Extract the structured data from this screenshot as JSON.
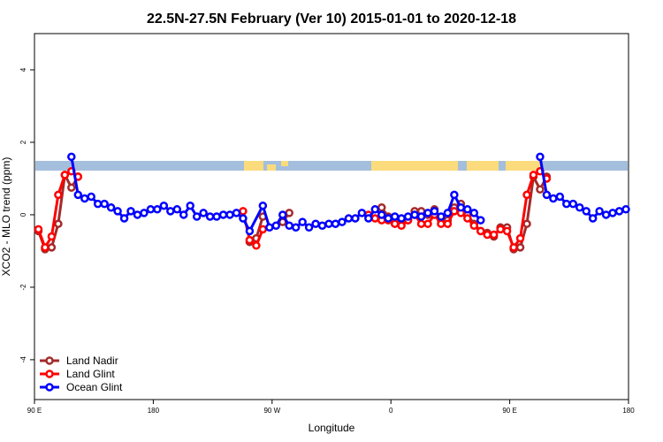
{
  "chart_data": {
    "type": "line",
    "title": "22.5N-27.5N February (Ver 10)   2015-01-01 to 2020-12-18",
    "x_label": "Longitude",
    "y_label": "XCO2 - MLO trend (ppm)",
    "xlim": [
      90,
      540
    ],
    "ylim": [
      -5.1,
      5.0
    ],
    "xticks": [
      {
        "value": 90,
        "label": "90 E"
      },
      {
        "value": 180,
        "label": "180"
      },
      {
        "value": 270,
        "label": "90 W"
      },
      {
        "value": 360,
        "label": "0"
      },
      {
        "value": 450,
        "label": "90 E"
      },
      {
        "value": 540,
        "label": "180"
      }
    ],
    "yticks": [
      -4,
      -2,
      0,
      2,
      4
    ],
    "legend": "bottomleft",
    "series": [
      {
        "name": "Land Nadir",
        "color": "#a52a2a",
        "x": [
          93,
          98,
          103,
          108,
          113,
          118,
          123,
          188,
          253,
          258,
          263,
          270,
          278,
          283,
          300,
          353,
          358,
          363,
          368,
          373,
          378,
          383,
          388,
          393,
          398,
          403,
          408,
          413,
          418,
          423,
          428,
          433,
          438,
          443,
          448,
          453,
          458,
          463,
          468,
          473,
          478
        ],
        "values": [
          -0.45,
          -0.95,
          -0.9,
          -0.25,
          1.1,
          0.75,
          1.05,
          null,
          -0.75,
          -0.65,
          -0.05,
          null,
          -0.2,
          0.05,
          null,
          0.2,
          -0.05,
          -0.1,
          -0.15,
          -0.15,
          0.1,
          0.1,
          0.0,
          0.15,
          -0.15,
          -0.15,
          0.2,
          0.3,
          0.0,
          -0.25,
          -0.45,
          -0.5,
          -0.6,
          -0.35,
          -0.35,
          -0.95,
          -0.9,
          -0.25,
          1.05,
          0.7,
          1.05
        ]
      },
      {
        "name": "Land Glint",
        "color": "#ff0000",
        "x": [
          93,
          98,
          103,
          108,
          113,
          118,
          123,
          188,
          248,
          253,
          258,
          263,
          300,
          343,
          348,
          353,
          358,
          363,
          368,
          373,
          378,
          383,
          388,
          393,
          398,
          403,
          408,
          413,
          418,
          423,
          428,
          433,
          438,
          443,
          448,
          453,
          458,
          463,
          468,
          473,
          478
        ],
        "values": [
          -0.4,
          -0.9,
          -0.6,
          0.55,
          1.1,
          1.2,
          1.05,
          null,
          0.1,
          -0.7,
          -0.85,
          -0.4,
          null,
          0.0,
          -0.1,
          -0.15,
          -0.15,
          -0.25,
          -0.3,
          -0.15,
          0.0,
          -0.25,
          -0.25,
          0.0,
          -0.25,
          -0.25,
          0.1,
          0.05,
          -0.1,
          -0.3,
          -0.45,
          -0.55,
          -0.55,
          -0.4,
          -0.45,
          -0.9,
          -0.65,
          0.55,
          1.1,
          1.2,
          1.0
        ]
      },
      {
        "name": "Ocean Glint",
        "color": "#0000ff",
        "x": [
          118,
          123,
          128,
          133,
          138,
          143,
          148,
          153,
          158,
          163,
          168,
          173,
          178,
          183,
          188,
          193,
          198,
          203,
          208,
          213,
          218,
          223,
          228,
          233,
          238,
          243,
          248,
          253,
          263,
          268,
          273,
          278,
          283,
          288,
          293,
          298,
          303,
          308,
          313,
          318,
          323,
          328,
          333,
          338,
          343,
          348,
          353,
          358,
          363,
          368,
          373,
          378,
          383,
          388,
          393,
          398,
          403,
          408,
          413,
          418,
          423,
          428,
          450,
          473,
          478,
          483,
          488,
          493,
          498,
          503,
          508,
          513,
          518,
          523,
          528,
          533,
          538
        ],
        "values": [
          1.6,
          0.55,
          0.45,
          0.5,
          0.3,
          0.3,
          0.2,
          0.1,
          -0.1,
          0.1,
          0.0,
          0.05,
          0.15,
          0.15,
          0.25,
          0.1,
          0.15,
          0.0,
          0.25,
          -0.05,
          0.05,
          -0.05,
          -0.05,
          0.0,
          0.0,
          0.05,
          -0.1,
          -0.45,
          0.25,
          -0.35,
          -0.3,
          0.0,
          -0.3,
          -0.35,
          -0.2,
          -0.35,
          -0.25,
          -0.3,
          -0.25,
          -0.25,
          -0.2,
          -0.1,
          -0.1,
          0.05,
          -0.1,
          0.15,
          0.0,
          -0.1,
          -0.05,
          -0.1,
          -0.05,
          0.0,
          -0.05,
          0.05,
          0.1,
          -0.05,
          0.05,
          0.55,
          0.2,
          0.15,
          0.05,
          -0.15,
          null,
          1.6,
          0.55,
          0.45,
          0.5,
          0.3,
          0.3,
          0.2,
          0.1,
          -0.1,
          0.1,
          0.0,
          0.05,
          0.1,
          0.15
        ]
      }
    ]
  }
}
